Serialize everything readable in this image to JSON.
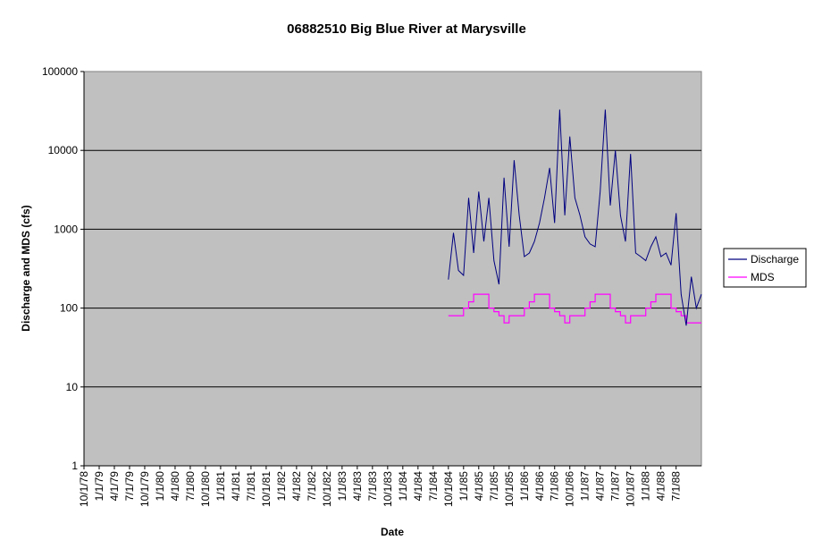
{
  "chart_data": {
    "type": "line",
    "title": "06882510 Big Blue River at Marysville",
    "xlabel": "Date",
    "ylabel": "Discharge and MDS (cfs)",
    "yscale": "log",
    "ylim": [
      1,
      100000
    ],
    "y_ticks": [
      "1",
      "10",
      "100",
      "1000",
      "10000",
      "100000"
    ],
    "x_ticks": [
      "10/1/78",
      "1/1/79",
      "4/1/79",
      "7/1/79",
      "10/1/79",
      "1/1/80",
      "4/1/80",
      "7/1/80",
      "10/1/80",
      "1/1/81",
      "4/1/81",
      "7/1/81",
      "10/1/81",
      "1/1/82",
      "4/1/82",
      "7/1/82",
      "10/1/82",
      "1/1/83",
      "4/1/83",
      "7/1/83",
      "10/1/83",
      "1/1/84",
      "4/1/84",
      "7/1/84",
      "10/1/84",
      "1/1/85",
      "4/1/85",
      "7/1/85",
      "10/1/85",
      "1/1/86",
      "4/1/86",
      "7/1/86",
      "10/1/86",
      "1/1/87",
      "4/1/87",
      "7/1/87",
      "10/1/87",
      "1/1/88",
      "4/1/88",
      "7/1/88"
    ],
    "xlim": [
      "10/1/78",
      "12/1/88"
    ],
    "grid": "horizontal",
    "legend_position": "right",
    "series": [
      {
        "name": "Discharge",
        "color": "#000080",
        "points": [
          [
            "10/1/84",
            230
          ],
          [
            "11/1/84",
            900
          ],
          [
            "12/1/84",
            300
          ],
          [
            "1/1/85",
            260
          ],
          [
            "2/1/85",
            2500
          ],
          [
            "3/1/85",
            500
          ],
          [
            "4/1/85",
            3000
          ],
          [
            "5/1/85",
            700
          ],
          [
            "6/1/85",
            2500
          ],
          [
            "7/1/85",
            400
          ],
          [
            "8/1/85",
            200
          ],
          [
            "9/1/85",
            4500
          ],
          [
            "10/1/85",
            600
          ],
          [
            "11/1/85",
            7500
          ],
          [
            "12/1/85",
            1500
          ],
          [
            "1/1/86",
            450
          ],
          [
            "2/1/86",
            500
          ],
          [
            "3/1/86",
            700
          ],
          [
            "4/1/86",
            1200
          ],
          [
            "5/1/86",
            2500
          ],
          [
            "6/1/86",
            6000
          ],
          [
            "7/1/86",
            1200
          ],
          [
            "8/1/86",
            33000
          ],
          [
            "9/1/86",
            1500
          ],
          [
            "10/1/86",
            15000
          ],
          [
            "11/1/86",
            2500
          ],
          [
            "12/1/86",
            1500
          ],
          [
            "1/1/87",
            800
          ],
          [
            "2/1/87",
            650
          ],
          [
            "3/1/87",
            600
          ],
          [
            "4/1/87",
            3000
          ],
          [
            "5/1/87",
            33000
          ],
          [
            "6/1/87",
            2000
          ],
          [
            "7/1/87",
            10000
          ],
          [
            "8/1/87",
            1500
          ],
          [
            "9/1/87",
            700
          ],
          [
            "10/1/87",
            9000
          ],
          [
            "11/1/87",
            500
          ],
          [
            "12/1/87",
            450
          ],
          [
            "1/1/88",
            400
          ],
          [
            "2/1/88",
            600
          ],
          [
            "3/1/88",
            800
          ],
          [
            "4/1/88",
            450
          ],
          [
            "5/1/88",
            500
          ],
          [
            "6/1/88",
            350
          ],
          [
            "7/1/88",
            1600
          ],
          [
            "8/1/88",
            150
          ],
          [
            "9/1/88",
            60
          ],
          [
            "10/1/88",
            250
          ],
          [
            "11/1/88",
            100
          ],
          [
            "12/1/88",
            150
          ]
        ]
      },
      {
        "name": "MDS",
        "color": "#ff00ff",
        "steps": [
          [
            "10/1/84",
            80
          ],
          [
            "1/1/85",
            100
          ],
          [
            "2/1/85",
            120
          ],
          [
            "3/1/85",
            150
          ],
          [
            "6/1/85",
            100
          ],
          [
            "7/1/85",
            90
          ],
          [
            "8/1/85",
            80
          ],
          [
            "9/1/85",
            65
          ],
          [
            "10/1/85",
            80
          ],
          [
            "1/1/86",
            100
          ],
          [
            "2/1/86",
            120
          ],
          [
            "3/1/86",
            150
          ],
          [
            "6/1/86",
            100
          ],
          [
            "7/1/86",
            90
          ],
          [
            "8/1/86",
            80
          ],
          [
            "9/1/86",
            65
          ],
          [
            "10/1/86",
            80
          ],
          [
            "1/1/87",
            100
          ],
          [
            "2/1/87",
            120
          ],
          [
            "3/1/87",
            150
          ],
          [
            "6/1/87",
            100
          ],
          [
            "7/1/87",
            90
          ],
          [
            "8/1/87",
            80
          ],
          [
            "9/1/87",
            65
          ],
          [
            "10/1/87",
            80
          ],
          [
            "1/1/88",
            100
          ],
          [
            "2/1/88",
            120
          ],
          [
            "3/1/88",
            150
          ],
          [
            "6/1/88",
            100
          ],
          [
            "7/1/88",
            90
          ],
          [
            "8/1/88",
            80
          ],
          [
            "9/1/88",
            65
          ],
          [
            "12/1/88",
            65
          ]
        ]
      }
    ]
  }
}
